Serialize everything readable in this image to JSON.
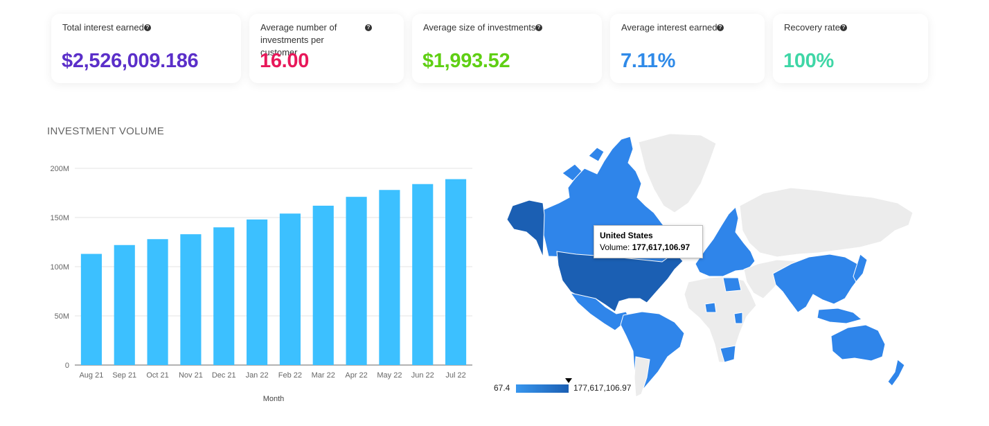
{
  "kpis": [
    {
      "label": "Total interest earned",
      "value": "$2,526,009.186",
      "color": "#5b2fc9"
    },
    {
      "label": "Average number of investments per customer",
      "value": "16.00",
      "color": "#e8185a"
    },
    {
      "label": "Average size of investments",
      "value": "$1,993.52",
      "color": "#5fcf13"
    },
    {
      "label": "Average interest earned",
      "value": "7.11%",
      "color": "#2f8ae8"
    },
    {
      "label": "Recovery rate",
      "value": "100%",
      "color": "#3fd6a6"
    }
  ],
  "help_icon": "question-circle-icon",
  "section_title": "INVESTMENT VOLUME",
  "chart_data": [
    {
      "type": "bar",
      "title": "INVESTMENT VOLUME",
      "xlabel": "Month",
      "ylabel": "",
      "categories": [
        "Aug 21",
        "Sep 21",
        "Oct 21",
        "Nov 21",
        "Dec 21",
        "Jan 22",
        "Feb 22",
        "Mar 22",
        "Apr 22",
        "May 22",
        "Jun 22",
        "Jul 22"
      ],
      "values": [
        113000000,
        122000000,
        128000000,
        133000000,
        140000000,
        148000000,
        154000000,
        162000000,
        171000000,
        178000000,
        184000000,
        189000000
      ],
      "ylim": [
        0,
        200000000
      ],
      "yticks": [
        0,
        50000000,
        100000000,
        150000000,
        200000000
      ],
      "ytick_labels": [
        "0",
        "50M",
        "100M",
        "150M",
        "200M"
      ],
      "grid": true,
      "bar_color": "#3cc0ff"
    },
    {
      "type": "geo",
      "metric": "Volume",
      "highlight": {
        "country": "United States",
        "label": "Volume:",
        "value": "177,617,106.97"
      },
      "legend": {
        "min": "67.4",
        "max": "177,617,106.97"
      },
      "color_low": "#3896ee",
      "color_high": "#1b5fb3",
      "color_nodata": "#ececec"
    }
  ]
}
